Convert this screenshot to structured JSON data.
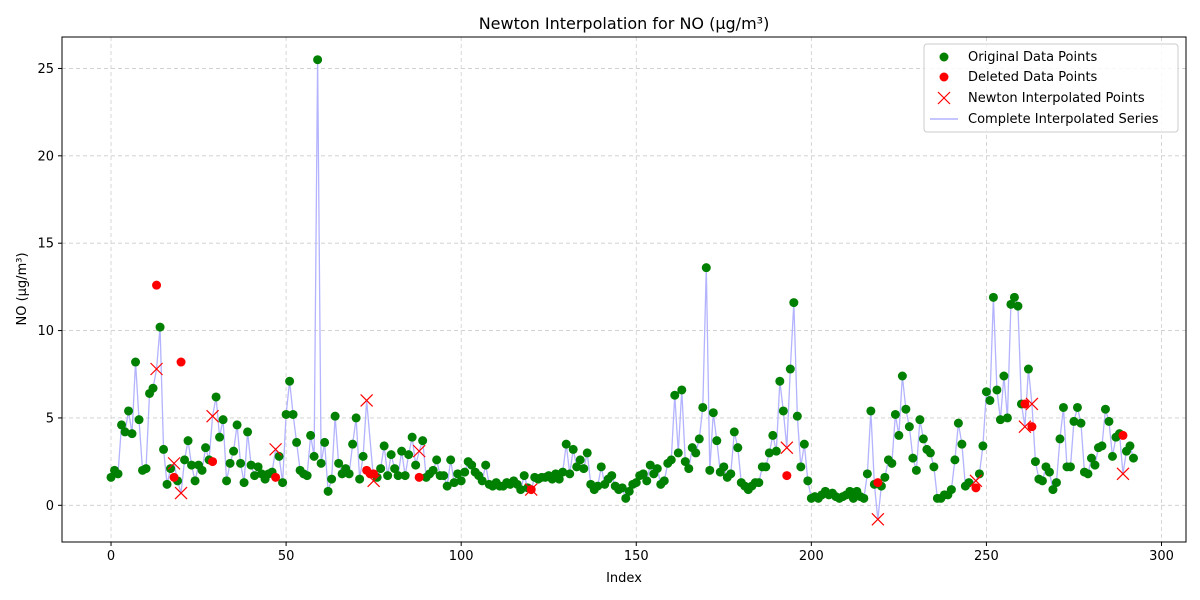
{
  "chart_data": {
    "type": "line",
    "title": "Newton Interpolation for NO (µg/m³)",
    "xlabel": "Index",
    "ylabel": "NO (µg/m³)",
    "xlim": [
      -14,
      307
    ],
    "ylim": [
      -2.1,
      26.8
    ],
    "xticks": [
      0,
      50,
      100,
      150,
      200,
      250,
      300
    ],
    "yticks": [
      0,
      5,
      10,
      15,
      20,
      25
    ],
    "grid": true,
    "legend_position": "top-right",
    "colors": {
      "original": "#008000",
      "deleted": "#ff0000",
      "interpolated": "#ff0000",
      "line": "#b3b3ff"
    },
    "series": [
      {
        "name": "Original Data Points",
        "marker": "circle",
        "points": [
          [
            0,
            1.6
          ],
          [
            1,
            2.0
          ],
          [
            2,
            1.8
          ],
          [
            3,
            4.6
          ],
          [
            4,
            4.2
          ],
          [
            5,
            5.4
          ],
          [
            6,
            4.1
          ],
          [
            7,
            8.2
          ],
          [
            8,
            4.9
          ],
          [
            9,
            2.0
          ],
          [
            10,
            2.1
          ],
          [
            11,
            6.4
          ],
          [
            12,
            6.7
          ],
          [
            14,
            10.2
          ],
          [
            15,
            3.2
          ],
          [
            16,
            1.2
          ],
          [
            17,
            2.1
          ],
          [
            19,
            1.4
          ],
          [
            21,
            2.6
          ],
          [
            22,
            3.7
          ],
          [
            23,
            2.3
          ],
          [
            24,
            1.4
          ],
          [
            25,
            2.3
          ],
          [
            26,
            2.0
          ],
          [
            27,
            3.3
          ],
          [
            28,
            2.6
          ],
          [
            30,
            6.2
          ],
          [
            31,
            3.9
          ],
          [
            32,
            4.9
          ],
          [
            33,
            1.4
          ],
          [
            34,
            2.4
          ],
          [
            35,
            3.1
          ],
          [
            36,
            4.6
          ],
          [
            37,
            2.4
          ],
          [
            38,
            1.3
          ],
          [
            39,
            4.2
          ],
          [
            40,
            2.3
          ],
          [
            41,
            1.7
          ],
          [
            42,
            2.2
          ],
          [
            43,
            1.8
          ],
          [
            44,
            1.5
          ],
          [
            45,
            1.8
          ],
          [
            46,
            1.9
          ],
          [
            48,
            2.8
          ],
          [
            49,
            1.3
          ],
          [
            50,
            5.2
          ],
          [
            51,
            7.1
          ],
          [
            52,
            5.2
          ],
          [
            53,
            3.6
          ],
          [
            54,
            2.0
          ],
          [
            55,
            1.8
          ],
          [
            56,
            1.7
          ],
          [
            57,
            4.0
          ],
          [
            58,
            2.8
          ],
          [
            59,
            25.5
          ],
          [
            60,
            2.4
          ],
          [
            61,
            3.6
          ],
          [
            62,
            0.8
          ],
          [
            63,
            1.5
          ],
          [
            64,
            5.1
          ],
          [
            65,
            2.4
          ],
          [
            66,
            1.8
          ],
          [
            67,
            2.1
          ],
          [
            68,
            1.8
          ],
          [
            69,
            3.5
          ],
          [
            70,
            5.0
          ],
          [
            71,
            1.5
          ],
          [
            72,
            2.8
          ],
          [
            76,
            1.6
          ],
          [
            77,
            2.1
          ],
          [
            78,
            3.4
          ],
          [
            79,
            1.7
          ],
          [
            80,
            2.9
          ],
          [
            81,
            2.1
          ],
          [
            82,
            1.7
          ],
          [
            83,
            3.1
          ],
          [
            84,
            1.7
          ],
          [
            85,
            2.9
          ],
          [
            86,
            3.9
          ],
          [
            87,
            2.3
          ],
          [
            89,
            3.7
          ],
          [
            90,
            1.6
          ],
          [
            91,
            1.8
          ],
          [
            92,
            2.0
          ],
          [
            93,
            2.6
          ],
          [
            94,
            1.7
          ],
          [
            95,
            1.7
          ],
          [
            96,
            1.1
          ],
          [
            97,
            2.6
          ],
          [
            98,
            1.3
          ],
          [
            99,
            1.8
          ],
          [
            100,
            1.4
          ],
          [
            101,
            1.9
          ],
          [
            102,
            2.5
          ],
          [
            103,
            2.3
          ],
          [
            104,
            1.9
          ],
          [
            105,
            1.7
          ],
          [
            106,
            1.4
          ],
          [
            107,
            2.3
          ],
          [
            108,
            1.2
          ],
          [
            109,
            1.1
          ],
          [
            110,
            1.3
          ],
          [
            111,
            1.1
          ],
          [
            112,
            1.1
          ],
          [
            113,
            1.3
          ],
          [
            114,
            1.2
          ],
          [
            115,
            1.4
          ],
          [
            116,
            1.2
          ],
          [
            117,
            0.9
          ],
          [
            118,
            1.7
          ],
          [
            119,
            1.0
          ],
          [
            121,
            1.6
          ],
          [
            122,
            1.5
          ],
          [
            123,
            1.6
          ],
          [
            124,
            1.6
          ],
          [
            125,
            1.7
          ],
          [
            126,
            1.5
          ],
          [
            127,
            1.8
          ],
          [
            128,
            1.5
          ],
          [
            129,
            1.9
          ],
          [
            130,
            3.5
          ],
          [
            131,
            1.8
          ],
          [
            132,
            3.2
          ],
          [
            133,
            2.2
          ],
          [
            134,
            2.6
          ],
          [
            135,
            2.1
          ],
          [
            136,
            3.0
          ],
          [
            137,
            1.2
          ],
          [
            138,
            0.9
          ],
          [
            139,
            1.1
          ],
          [
            140,
            2.2
          ],
          [
            141,
            1.2
          ],
          [
            142,
            1.5
          ],
          [
            143,
            1.7
          ],
          [
            144,
            1.1
          ],
          [
            145,
            0.9
          ],
          [
            146,
            1.0
          ],
          [
            147,
            0.4
          ],
          [
            148,
            0.8
          ],
          [
            149,
            1.2
          ],
          [
            150,
            1.3
          ],
          [
            151,
            1.7
          ],
          [
            152,
            1.8
          ],
          [
            153,
            1.4
          ],
          [
            154,
            2.3
          ],
          [
            155,
            1.8
          ],
          [
            156,
            2.1
          ],
          [
            157,
            1.2
          ],
          [
            158,
            1.4
          ],
          [
            159,
            2.4
          ],
          [
            160,
            2.6
          ],
          [
            161,
            6.3
          ],
          [
            162,
            3.0
          ],
          [
            163,
            6.6
          ],
          [
            164,
            2.5
          ],
          [
            165,
            2.1
          ],
          [
            166,
            3.3
          ],
          [
            167,
            3.0
          ],
          [
            168,
            3.8
          ],
          [
            169,
            5.6
          ],
          [
            170,
            13.6
          ],
          [
            171,
            2.0
          ],
          [
            172,
            5.3
          ],
          [
            173,
            3.7
          ],
          [
            174,
            1.9
          ],
          [
            175,
            2.2
          ],
          [
            176,
            1.6
          ],
          [
            177,
            1.8
          ],
          [
            178,
            4.2
          ],
          [
            179,
            3.3
          ],
          [
            180,
            1.3
          ],
          [
            181,
            1.1
          ],
          [
            182,
            0.9
          ],
          [
            183,
            1.1
          ],
          [
            184,
            1.3
          ],
          [
            185,
            1.3
          ],
          [
            186,
            2.2
          ],
          [
            187,
            2.2
          ],
          [
            188,
            3.0
          ],
          [
            189,
            4.0
          ],
          [
            190,
            3.1
          ],
          [
            191,
            7.1
          ],
          [
            192,
            5.4
          ],
          [
            194,
            7.8
          ],
          [
            195,
            11.6
          ],
          [
            196,
            5.1
          ],
          [
            197,
            2.2
          ],
          [
            198,
            3.5
          ],
          [
            199,
            1.4
          ],
          [
            200,
            0.4
          ],
          [
            201,
            0.5
          ],
          [
            202,
            0.4
          ],
          [
            203,
            0.6
          ],
          [
            204,
            0.8
          ],
          [
            205,
            0.6
          ],
          [
            206,
            0.7
          ],
          [
            207,
            0.5
          ],
          [
            208,
            0.4
          ],
          [
            209,
            0.5
          ],
          [
            210,
            0.6
          ],
          [
            211,
            0.8
          ],
          [
            212,
            0.4
          ],
          [
            213,
            0.8
          ],
          [
            214,
            0.5
          ],
          [
            215,
            0.4
          ],
          [
            216,
            1.8
          ],
          [
            217,
            5.4
          ],
          [
            218,
            1.2
          ],
          [
            220,
            1.1
          ],
          [
            221,
            1.6
          ],
          [
            222,
            2.6
          ],
          [
            223,
            2.4
          ],
          [
            224,
            5.2
          ],
          [
            225,
            4.0
          ],
          [
            226,
            7.4
          ],
          [
            227,
            5.5
          ],
          [
            228,
            4.5
          ],
          [
            229,
            2.7
          ],
          [
            230,
            2.0
          ],
          [
            231,
            4.9
          ],
          [
            232,
            3.8
          ],
          [
            233,
            3.2
          ],
          [
            234,
            3.0
          ],
          [
            235,
            2.2
          ],
          [
            236,
            0.4
          ],
          [
            237,
            0.4
          ],
          [
            238,
            0.6
          ],
          [
            239,
            0.6
          ],
          [
            240,
            0.9
          ],
          [
            241,
            2.6
          ],
          [
            242,
            4.7
          ],
          [
            243,
            3.5
          ],
          [
            244,
            1.1
          ],
          [
            245,
            1.3
          ],
          [
            248,
            1.8
          ],
          [
            249,
            3.4
          ],
          [
            250,
            6.5
          ],
          [
            251,
            6.0
          ],
          [
            252,
            11.9
          ],
          [
            253,
            6.6
          ],
          [
            254,
            4.9
          ],
          [
            255,
            7.4
          ],
          [
            256,
            5.0
          ],
          [
            257,
            11.5
          ],
          [
            258,
            11.9
          ],
          [
            259,
            11.4
          ],
          [
            260,
            5.8
          ],
          [
            262,
            7.8
          ],
          [
            264,
            2.5
          ],
          [
            265,
            1.5
          ],
          [
            266,
            1.4
          ],
          [
            267,
            2.2
          ],
          [
            268,
            1.9
          ],
          [
            269,
            0.9
          ],
          [
            270,
            1.3
          ],
          [
            271,
            3.8
          ],
          [
            272,
            5.6
          ],
          [
            273,
            2.2
          ],
          [
            274,
            2.2
          ],
          [
            275,
            4.8
          ],
          [
            276,
            5.6
          ],
          [
            277,
            4.7
          ],
          [
            278,
            1.9
          ],
          [
            279,
            1.8
          ],
          [
            280,
            2.7
          ],
          [
            281,
            2.3
          ],
          [
            282,
            3.3
          ],
          [
            283,
            3.4
          ],
          [
            284,
            5.5
          ],
          [
            285,
            4.8
          ],
          [
            286,
            2.8
          ],
          [
            287,
            3.9
          ],
          [
            288,
            4.1
          ],
          [
            290,
            3.1
          ],
          [
            291,
            3.4
          ],
          [
            292,
            2.7
          ]
        ]
      },
      {
        "name": "Deleted Data Points",
        "marker": "circle",
        "points": [
          [
            13,
            12.6
          ],
          [
            18,
            1.6
          ],
          [
            20,
            8.2
          ],
          [
            29,
            2.5
          ],
          [
            47,
            1.6
          ],
          [
            73,
            2.0
          ],
          [
            74,
            1.8
          ],
          [
            75,
            1.8
          ],
          [
            88,
            1.6
          ],
          [
            120,
            0.9
          ],
          [
            193,
            1.7
          ],
          [
            219,
            1.3
          ],
          [
            247,
            1.0
          ],
          [
            261,
            5.8
          ],
          [
            263,
            4.5
          ],
          [
            289,
            4.0
          ]
        ]
      },
      {
        "name": "Newton Interpolated Points",
        "marker": "x",
        "points": [
          [
            13,
            7.8
          ],
          [
            18,
            2.4
          ],
          [
            20,
            0.7
          ],
          [
            29,
            5.1
          ],
          [
            47,
            3.2
          ],
          [
            73,
            6.0
          ],
          [
            75,
            1.4
          ],
          [
            88,
            3.1
          ],
          [
            120,
            0.9
          ],
          [
            193,
            3.3
          ],
          [
            219,
            -0.8
          ],
          [
            247,
            1.4
          ],
          [
            261,
            4.5
          ],
          [
            263,
            5.8
          ],
          [
            289,
            1.8
          ]
        ]
      },
      {
        "name": "Complete Interpolated Series",
        "marker": "line"
      }
    ]
  }
}
